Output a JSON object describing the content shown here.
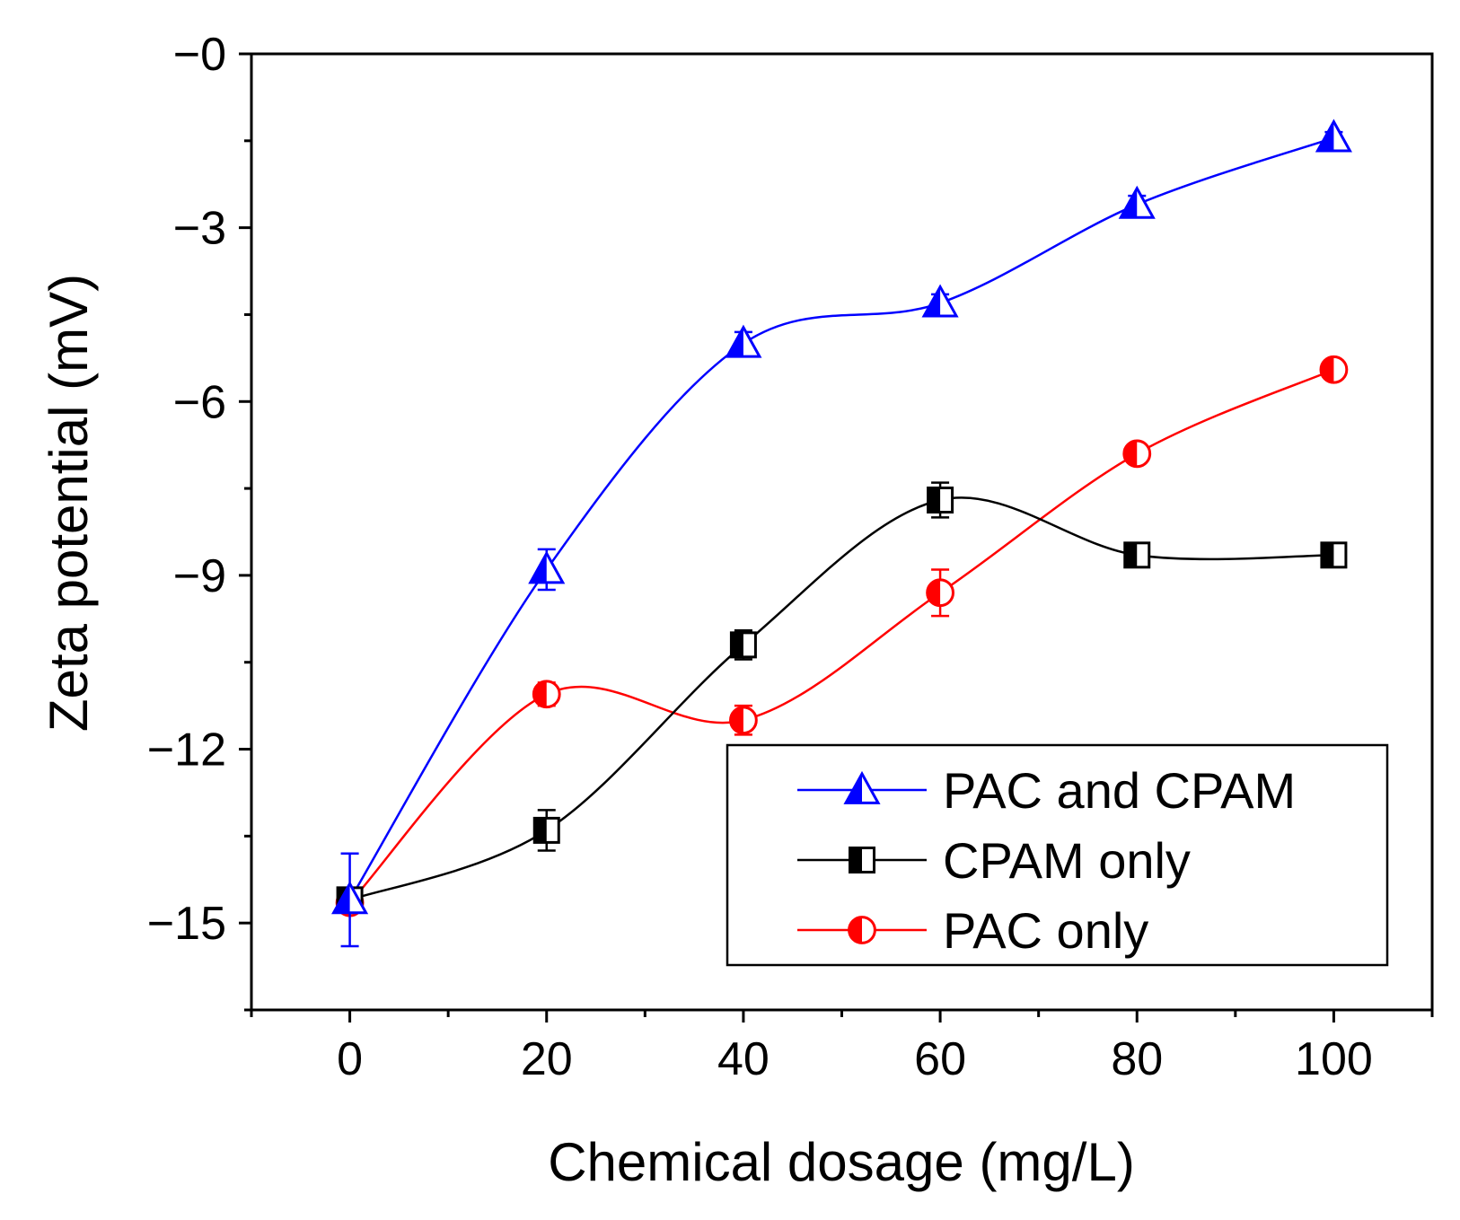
{
  "chart_data": {
    "type": "line",
    "title": "",
    "xlabel": "Chemical dosage (mg/L)",
    "ylabel": "Zeta potential (mV)",
    "xlim": [
      -10,
      110
    ],
    "ylim": [
      -16.5,
      0
    ],
    "x_ticks": [
      0,
      20,
      40,
      60,
      80,
      100
    ],
    "x_tick_labels": [
      "0",
      "20",
      "40",
      "60",
      "80",
      "100"
    ],
    "y_ticks": [
      0,
      -3,
      -6,
      -9,
      -12,
      -15
    ],
    "y_tick_labels": [
      "−0",
      "−3",
      "−6",
      "−9",
      "−12",
      "−15"
    ],
    "legend_position": "bottom-right",
    "series": [
      {
        "name": "PAC and CPAM",
        "color": "#0000ff",
        "marker": "half-triangle",
        "x": [
          0,
          20,
          40,
          60,
          80,
          100
        ],
        "y": [
          -14.6,
          -8.9,
          -5.0,
          -4.3,
          -2.6,
          -1.45
        ],
        "err": [
          0.8,
          0.35,
          0.2,
          0.15,
          0.15,
          0.1
        ]
      },
      {
        "name": "CPAM only",
        "color": "#000000",
        "marker": "half-square",
        "x": [
          0,
          20,
          40,
          60,
          80,
          100
        ],
        "y": [
          -14.6,
          -13.4,
          -10.2,
          -7.7,
          -8.65,
          -8.65
        ],
        "err": [
          0.1,
          0.35,
          0.25,
          0.3,
          0.1,
          0.1
        ]
      },
      {
        "name": "PAC only",
        "color": "#ff0000",
        "marker": "half-circle",
        "x": [
          0,
          20,
          40,
          60,
          80,
          100
        ],
        "y": [
          -14.65,
          -11.05,
          -11.5,
          -9.3,
          -6.9,
          -5.45
        ],
        "err": [
          0.1,
          0.2,
          0.25,
          0.4,
          0.15,
          0.1
        ]
      }
    ]
  }
}
